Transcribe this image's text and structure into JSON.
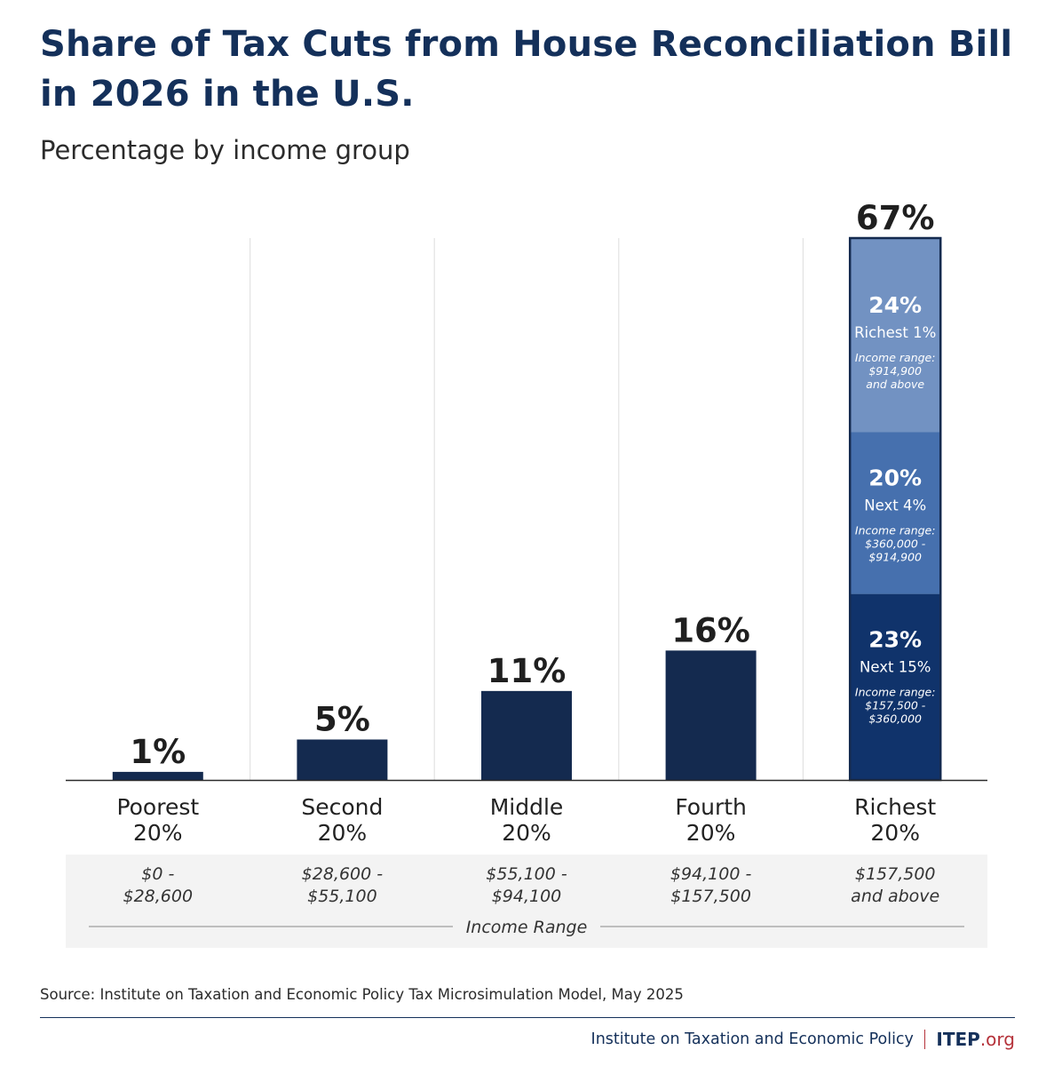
{
  "title": "Share of Tax Cuts from House Reconciliation Bill in 2026 in the U.S.",
  "subtitle": "Percentage by income group",
  "source": "Source: Institute on Taxation and Economic Policy Tax Microsimulation Model, May 2025",
  "footer": {
    "org": "Institute on Taxation and Economic Policy",
    "logo": "ITEP",
    "logo_suffix": ".org"
  },
  "colors": {
    "bar": "#142a4f",
    "richest1": "#7292c2",
    "next4": "#4670ae",
    "next15": "#10336b",
    "title": "#14305a"
  },
  "chart_data": {
    "type": "bar",
    "title": "Share of Tax Cuts from House Reconciliation Bill in 2026 in the U.S.",
    "ylim": [
      0,
      67
    ],
    "grid": "vertical separators",
    "categories": [
      {
        "line1": "Poorest",
        "line2": "20%",
        "range1": "$0 -",
        "range2": "$28,600",
        "value": 1,
        "label": "1%"
      },
      {
        "line1": "Second",
        "line2": "20%",
        "range1": "$28,600 -",
        "range2": "$55,100",
        "value": 5,
        "label": "5%"
      },
      {
        "line1": "Middle",
        "line2": "20%",
        "range1": "$55,100 -",
        "range2": "$94,100",
        "value": 11,
        "label": "11%"
      },
      {
        "line1": "Fourth",
        "line2": "20%",
        "range1": "$94,100 -",
        "range2": "$157,500",
        "value": 16,
        "label": "16%"
      },
      {
        "line1": "Richest",
        "line2": "20%",
        "range1": "$157,500",
        "range2": "and above",
        "value": 67,
        "label": "67%"
      }
    ],
    "stack_segments": [
      {
        "value": 23,
        "pct": "23%",
        "name": "Next 15%",
        "range_label": "Income range:",
        "range1": "$157,500 -",
        "range2": "$360,000",
        "color": "#10336b"
      },
      {
        "value": 20,
        "pct": "20%",
        "name": "Next 4%",
        "range_label": "Income range:",
        "range1": "$360,000 -",
        "range2": "$914,900",
        "color": "#4670ae"
      },
      {
        "value": 24,
        "pct": "24%",
        "name": "Richest 1%",
        "range_label": "Income range:",
        "range1": "$914,900",
        "range2": "and above",
        "color": "#7292c2"
      }
    ],
    "range_axis_label": "Income Range"
  }
}
